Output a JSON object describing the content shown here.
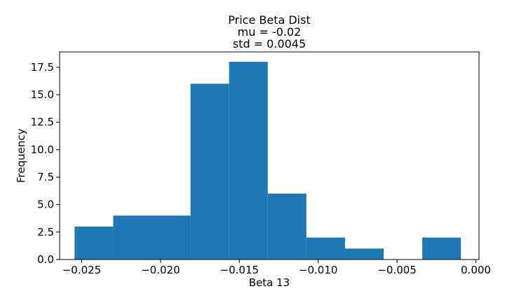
{
  "chart_data": {
    "type": "bar",
    "title": [
      "Price Beta Dist",
      "mu = -0.02",
      "std = 0.0045"
    ],
    "xlabel": "Beta 13",
    "ylabel": "Frequency",
    "xlim": [
      -0.0264,
      0.0002
    ],
    "ylim": [
      0,
      18.9
    ],
    "xticks": [
      -0.025,
      -0.02,
      -0.015,
      -0.01,
      -0.005,
      0.0
    ],
    "xtick_labels": [
      "−0.025",
      "−0.020",
      "−0.015",
      "−0.010",
      "−0.005",
      "0.000"
    ],
    "yticks": [
      0.0,
      2.5,
      5.0,
      7.5,
      10.0,
      12.5,
      15.0,
      17.5
    ],
    "ytick_labels": [
      "0.0",
      "2.5",
      "5.0",
      "7.5",
      "10.0",
      "12.5",
      "15.0",
      "17.5"
    ],
    "bins": [
      {
        "x0": -0.02545,
        "x1": -0.023,
        "count": 3
      },
      {
        "x0": -0.023,
        "x1": -0.02055,
        "count": 4
      },
      {
        "x0": -0.02055,
        "x1": -0.0181,
        "count": 4
      },
      {
        "x0": -0.0181,
        "x1": -0.01565,
        "count": 16
      },
      {
        "x0": -0.01565,
        "x1": -0.0132,
        "count": 18
      },
      {
        "x0": -0.0132,
        "x1": -0.01075,
        "count": 6
      },
      {
        "x0": -0.01075,
        "x1": -0.0083,
        "count": 2
      },
      {
        "x0": -0.0083,
        "x1": -0.00585,
        "count": 1
      },
      {
        "x0": -0.00585,
        "x1": -0.0034,
        "count": 0
      },
      {
        "x0": -0.0034,
        "x1": -0.00095,
        "count": 2
      }
    ],
    "bar_color": "#1f77b4",
    "grid": false,
    "legend": "none"
  }
}
